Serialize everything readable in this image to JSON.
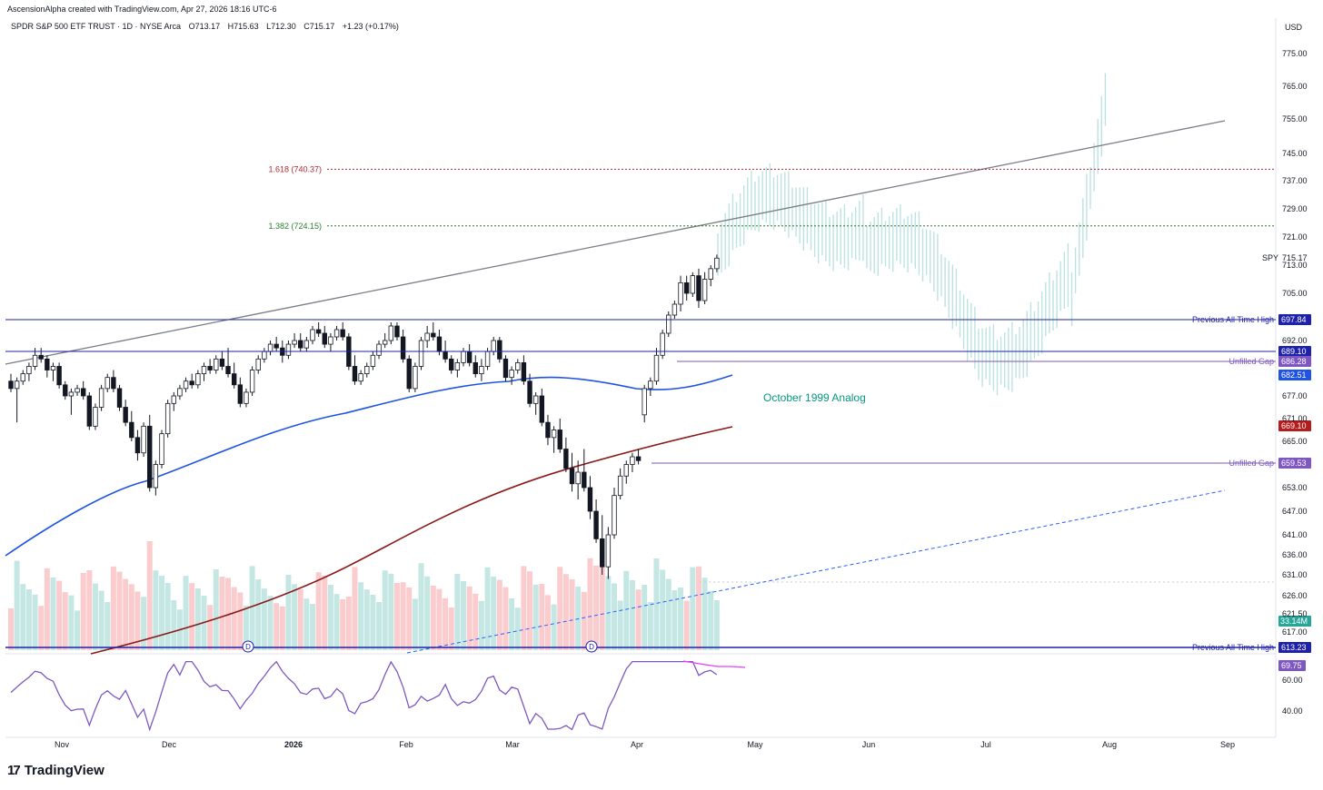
{
  "header": {
    "credit": "AscensionAlpha created with TradingView.com, Apr 27, 2026 18:16 UTC-6",
    "symbol_desc": "SPDR S&P 500 ETF TRUST · 1D · NYSE Arca",
    "open": "O713.17",
    "high": "H715.63",
    "low": "L712.30",
    "close": "C715.17",
    "change": "+1.23 (+0.17%)",
    "currency": "USD"
  },
  "brand": {
    "name": "TradingView",
    "logo_text": "17"
  },
  "chart_data": {
    "type": "candlestick",
    "currency": "USD",
    "price_axis": {
      "ticks": [
        775.0,
        765.0,
        755.0,
        745.0,
        737.0,
        729.0,
        721.0,
        713.0,
        705.0,
        692.0,
        677.0,
        671.0,
        665.0,
        653.0,
        647.0,
        641.0,
        636.0,
        631.0,
        626.0,
        621.5,
        617.0
      ],
      "rsi_ticks": [
        60.0,
        40.0
      ]
    },
    "x_axis": {
      "ticks": [
        "Nov",
        "Dec",
        "2026",
        "Feb",
        "Mar",
        "Apr",
        "May",
        "Jun",
        "Jul",
        "Aug",
        "Sep"
      ]
    },
    "last_price": {
      "symbol": "SPY",
      "price": "715.17",
      "secondary": "713.00"
    },
    "levels": [
      {
        "label": "Previous All Time High",
        "value": "697.84",
        "color": "#1e22aa"
      },
      {
        "label": "",
        "value": "689.10",
        "color": "#1e22aa"
      },
      {
        "label": "Unfilled Gap",
        "value": "686.28",
        "color": "#7e57c2"
      },
      {
        "label": "",
        "value": "682.51",
        "color": "#1e53e5"
      },
      {
        "label": "",
        "value": "669.10",
        "color": "#b71c1c"
      },
      {
        "label": "Unfilled Gap",
        "value": "659.53",
        "color": "#7e57c2"
      },
      {
        "label": "Previous All Time High",
        "value": "613.23",
        "color": "#1e22aa"
      }
    ],
    "fib_levels": [
      {
        "label": "1.618 (740.37)",
        "value": 740.37,
        "color": "#b22833"
      },
      {
        "label": "1.382 (724.15)",
        "value": 724.15,
        "color": "#2e7d32"
      }
    ],
    "volume": {
      "last": "33.14M",
      "color": "#26a69a"
    },
    "rsi": {
      "last": "69.75",
      "color": "#7e57c2"
    },
    "annotation": {
      "text": "October 1999 Analog",
      "color": "#089981"
    },
    "dividend_marker": "D",
    "candles": [
      [
        681,
        683,
        678,
        679
      ],
      [
        679,
        682,
        670,
        681
      ],
      [
        681,
        684,
        680,
        683
      ],
      [
        683,
        686,
        681,
        685
      ],
      [
        685,
        690,
        684,
        688
      ],
      [
        688,
        690,
        686,
        687
      ],
      [
        687,
        688,
        682,
        684
      ],
      [
        684,
        686,
        681,
        685
      ],
      [
        685,
        686,
        679,
        680
      ],
      [
        680,
        681,
        676,
        677
      ],
      [
        677,
        679,
        672,
        678
      ],
      [
        678,
        680,
        677,
        679
      ],
      [
        679,
        681,
        676,
        677
      ],
      [
        677,
        678,
        668,
        669
      ],
      [
        669,
        675,
        668,
        674
      ],
      [
        674,
        680,
        673,
        679
      ],
      [
        679,
        683,
        678,
        682
      ],
      [
        682,
        684,
        678,
        679
      ],
      [
        679,
        680,
        673,
        674
      ],
      [
        674,
        676,
        669,
        670
      ],
      [
        670,
        673,
        665,
        666
      ],
      [
        666,
        668,
        660,
        662
      ],
      [
        662,
        670,
        661,
        669
      ],
      [
        669,
        672,
        652,
        653
      ],
      [
        653,
        660,
        651,
        659
      ],
      [
        659,
        668,
        658,
        667
      ],
      [
        667,
        676,
        666,
        675
      ],
      [
        675,
        678,
        673,
        677
      ],
      [
        677,
        680,
        676,
        679
      ],
      [
        679,
        682,
        678,
        681
      ],
      [
        681,
        683,
        679,
        680
      ],
      [
        680,
        684,
        679,
        683
      ],
      [
        683,
        686,
        681,
        685
      ],
      [
        685,
        687,
        683,
        684
      ],
      [
        684,
        688,
        683,
        687
      ],
      [
        687,
        689,
        684,
        685
      ],
      [
        685,
        690,
        682,
        683
      ],
      [
        683,
        686,
        679,
        680
      ],
      [
        680,
        682,
        674,
        675
      ],
      [
        675,
        679,
        674,
        678
      ],
      [
        678,
        685,
        677,
        684
      ],
      [
        684,
        688,
        683,
        687
      ],
      [
        687,
        690,
        686,
        689
      ],
      [
        689,
        692,
        688,
        691
      ],
      [
        691,
        693,
        689,
        690
      ],
      [
        690,
        692,
        686,
        688
      ],
      [
        688,
        692,
        687,
        691
      ],
      [
        691,
        694,
        690,
        692
      ],
      [
        692,
        694,
        689,
        690
      ],
      [
        690,
        693,
        689,
        692
      ],
      [
        692,
        696,
        691,
        695
      ],
      [
        695,
        697,
        693,
        694
      ],
      [
        694,
        696,
        690,
        691
      ],
      [
        691,
        694,
        689,
        693
      ],
      [
        693,
        696,
        692,
        695
      ],
      [
        695,
        697,
        692,
        693
      ],
      [
        693,
        694,
        684,
        685
      ],
      [
        685,
        688,
        680,
        681
      ],
      [
        681,
        684,
        680,
        683
      ],
      [
        683,
        686,
        682,
        685
      ],
      [
        685,
        689,
        684,
        688
      ],
      [
        688,
        692,
        687,
        691
      ],
      [
        691,
        694,
        690,
        692
      ],
      [
        692,
        697,
        691,
        696
      ],
      [
        696,
        697,
        692,
        693
      ],
      [
        693,
        695,
        686,
        687
      ],
      [
        687,
        688,
        678,
        679
      ],
      [
        679,
        686,
        678,
        685
      ],
      [
        685,
        693,
        684,
        692
      ],
      [
        692,
        696,
        690,
        694
      ],
      [
        694,
        697,
        692,
        693
      ],
      [
        693,
        695,
        688,
        689
      ],
      [
        689,
        692,
        686,
        687
      ],
      [
        687,
        688,
        683,
        684
      ],
      [
        684,
        687,
        682,
        686
      ],
      [
        686,
        690,
        685,
        689
      ],
      [
        689,
        691,
        685,
        686
      ],
      [
        686,
        688,
        682,
        683
      ],
      [
        683,
        687,
        681,
        685
      ],
      [
        685,
        690,
        684,
        689
      ],
      [
        689,
        693,
        688,
        692
      ],
      [
        692,
        693,
        686,
        687
      ],
      [
        687,
        688,
        681,
        682
      ],
      [
        682,
        685,
        680,
        684
      ],
      [
        684,
        687,
        683,
        686
      ],
      [
        686,
        688,
        680,
        681
      ],
      [
        681,
        683,
        674,
        675
      ],
      [
        675,
        678,
        672,
        677
      ],
      [
        677,
        679,
        669,
        670
      ],
      [
        670,
        672,
        664,
        666
      ],
      [
        666,
        669,
        662,
        668
      ],
      [
        668,
        671,
        662,
        663
      ],
      [
        663,
        666,
        657,
        658
      ],
      [
        658,
        662,
        652,
        654
      ],
      [
        654,
        660,
        650,
        657
      ],
      [
        657,
        663,
        652,
        653
      ],
      [
        653,
        656,
        645,
        647
      ],
      [
        647,
        650,
        639,
        640
      ],
      [
        640,
        646,
        631,
        633
      ],
      [
        633,
        643,
        630,
        641
      ],
      [
        641,
        653,
        640,
        651
      ],
      [
        651,
        658,
        650,
        656
      ],
      [
        656,
        660,
        654,
        659
      ],
      [
        659,
        662,
        657,
        661
      ],
      [
        661,
        663,
        659,
        660
      ],
      [
        672,
        680,
        670,
        679
      ],
      [
        679,
        682,
        677,
        681
      ],
      [
        681,
        690,
        680,
        688
      ],
      [
        688,
        695,
        687,
        694
      ],
      [
        694,
        700,
        693,
        699
      ],
      [
        699,
        703,
        698,
        702
      ],
      [
        702,
        710,
        700,
        708
      ],
      [
        708,
        710,
        703,
        705
      ],
      [
        705,
        711,
        704,
        710
      ],
      [
        710,
        712,
        701,
        703
      ],
      [
        703,
        711,
        702,
        709
      ],
      [
        709,
        713,
        707,
        712
      ],
      [
        712,
        716,
        711,
        715
      ]
    ]
  }
}
